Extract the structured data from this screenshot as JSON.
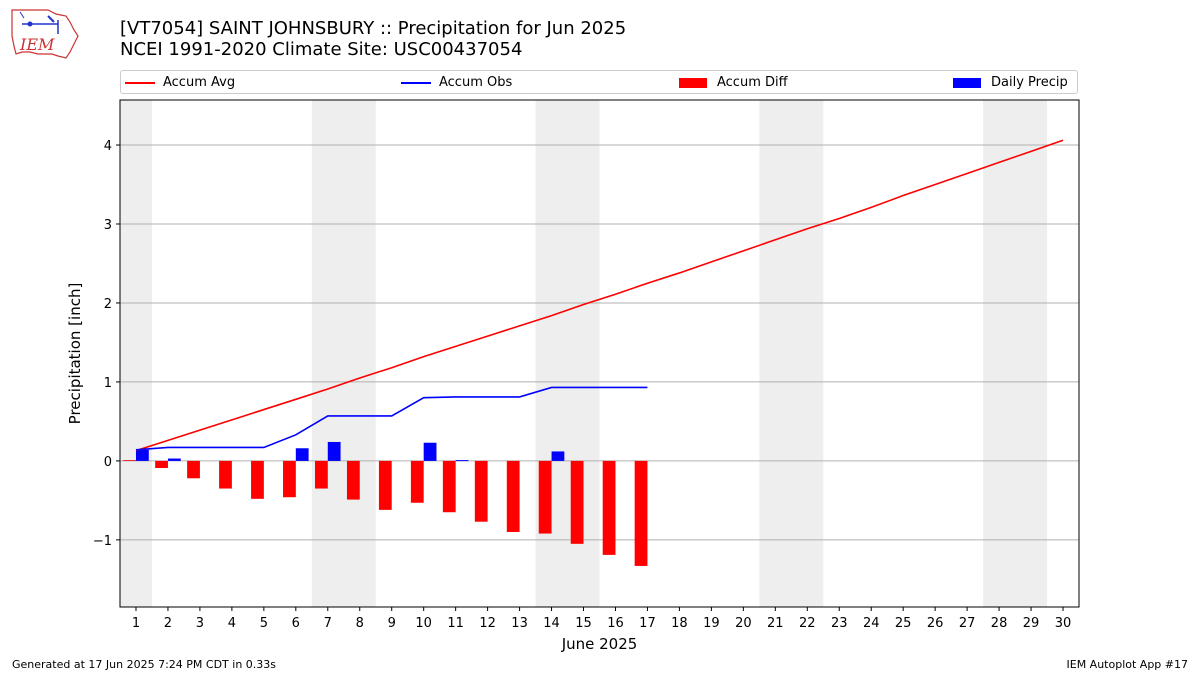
{
  "header": {
    "title_line1": "[VT7054] SAINT JOHNSBURY :: Precipitation for Jun 2025",
    "title_line2": "NCEI 1991-2020 Climate Site: USC00437054",
    "logo_text": "IEM"
  },
  "legend": {
    "accum_avg": "Accum Avg",
    "accum_obs": "Accum Obs",
    "accum_diff": "Accum Diff",
    "daily_precip": "Daily Precip"
  },
  "footer": {
    "left": "Generated at 17 Jun 2025 7:24 PM CDT in 0.33s",
    "right": "IEM Autoplot App #17"
  },
  "colors": {
    "avg": "#ff0000",
    "obs": "#0000ff",
    "diff": "#ff0000",
    "daily": "#0000ff",
    "weekend_shade": "#eeeeee",
    "grid": "#b0b0b0"
  },
  "chart_data": {
    "type": "bar",
    "xlabel": "June 2025",
    "ylabel": "Precipitation [inch]",
    "xlim": [
      0.5,
      30.5
    ],
    "ylim": [
      -1.85,
      4.57
    ],
    "yticks": [
      -1,
      0,
      1,
      2,
      3,
      4
    ],
    "ytick_labels": [
      "−1",
      "0",
      "1",
      "2",
      "3",
      "4"
    ],
    "xticks": [
      1,
      2,
      3,
      4,
      5,
      6,
      7,
      8,
      9,
      10,
      11,
      12,
      13,
      14,
      15,
      16,
      17,
      18,
      19,
      20,
      21,
      22,
      23,
      24,
      25,
      26,
      27,
      28,
      29,
      30
    ],
    "grid": "horizontal",
    "legend_position": "top",
    "weekend_shading": [
      [
        0.5,
        1.5
      ],
      [
        6.5,
        8.5
      ],
      [
        13.5,
        15.5
      ],
      [
        20.5,
        22.5
      ],
      [
        27.5,
        29.5
      ]
    ],
    "series": [
      {
        "name": "Accum Avg",
        "kind": "line",
        "x": [
          1,
          2,
          3,
          4,
          5,
          6,
          7,
          8,
          9,
          10,
          11,
          12,
          13,
          14,
          15,
          16,
          17,
          18,
          19,
          20,
          21,
          22,
          23,
          24,
          25,
          26,
          27,
          28,
          29,
          30
        ],
        "values": [
          0.13,
          0.26,
          0.39,
          0.52,
          0.65,
          0.78,
          0.91,
          1.05,
          1.18,
          1.32,
          1.45,
          1.58,
          1.71,
          1.84,
          1.98,
          2.11,
          2.25,
          2.38,
          2.52,
          2.66,
          2.8,
          2.94,
          3.07,
          3.21,
          3.36,
          3.5,
          3.64,
          3.78,
          3.92,
          4.06
        ]
      },
      {
        "name": "Accum Obs",
        "kind": "line",
        "x": [
          1,
          2,
          3,
          4,
          5,
          6,
          7,
          8,
          9,
          10,
          11,
          12,
          13,
          14,
          15,
          16,
          17
        ],
        "values": [
          0.14,
          0.17,
          0.17,
          0.17,
          0.17,
          0.33,
          0.57,
          0.57,
          0.57,
          0.8,
          0.81,
          0.81,
          0.81,
          0.93,
          0.93,
          0.93,
          0.93
        ]
      },
      {
        "name": "Accum Diff",
        "kind": "bar",
        "x": [
          1,
          2,
          3,
          4,
          5,
          6,
          7,
          8,
          9,
          10,
          11,
          12,
          13,
          14,
          15,
          16,
          17
        ],
        "values": [
          0.01,
          -0.09,
          -0.22,
          -0.35,
          -0.48,
          -0.46,
          -0.35,
          -0.49,
          -0.62,
          -0.53,
          -0.65,
          -0.77,
          -0.9,
          -0.92,
          -1.05,
          -1.19,
          -1.33
        ]
      },
      {
        "name": "Daily Precip",
        "kind": "bar",
        "x": [
          1,
          2,
          3,
          4,
          5,
          6,
          7,
          8,
          9,
          10,
          11,
          12,
          13,
          14,
          15,
          16,
          17
        ],
        "values": [
          0.14,
          0.03,
          0,
          0,
          0,
          0.16,
          0.24,
          0,
          0,
          0.23,
          0.01,
          0,
          0,
          0.12,
          0,
          0,
          0
        ]
      }
    ]
  }
}
